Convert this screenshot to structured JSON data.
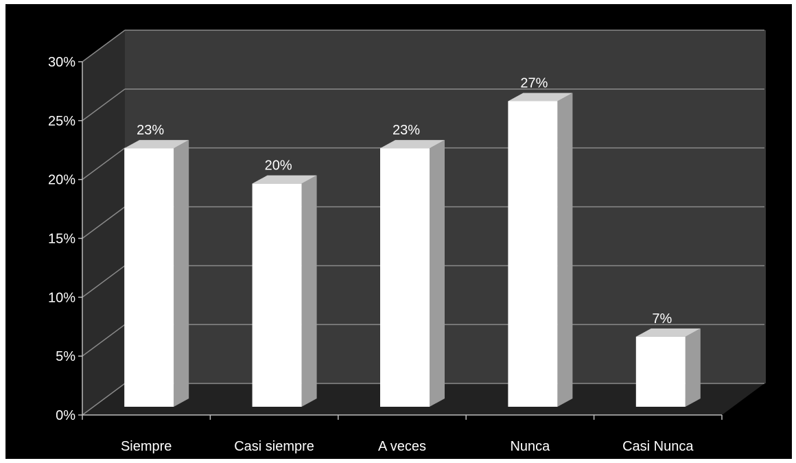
{
  "chart_data": {
    "type": "bar",
    "categories": [
      "Siempre",
      "Casi siempre",
      "A veces",
      "Nunca",
      "Casi Nunca"
    ],
    "values": [
      23,
      20,
      23,
      27,
      7
    ],
    "data_labels": [
      "23%",
      "20%",
      "23%",
      "27%",
      "7%"
    ],
    "ylim": [
      0,
      30
    ],
    "yticks": [
      0,
      5,
      10,
      15,
      20,
      25,
      30
    ],
    "ytick_labels": [
      "0%",
      "5%",
      "10%",
      "15%",
      "20%",
      "25%",
      "30%"
    ],
    "grid": true,
    "legend": "none",
    "style": "3d-column",
    "colors": {
      "background": "#000000",
      "back_wall": "#3a3a3a",
      "side_wall": "#2b2b2b",
      "floor": "#222222",
      "gridline": "#8a8a8a",
      "bar_front": "#ffffff",
      "bar_side": "#9c9c9c",
      "bar_top": "#cfcfcf",
      "text": "#ffffff"
    }
  }
}
